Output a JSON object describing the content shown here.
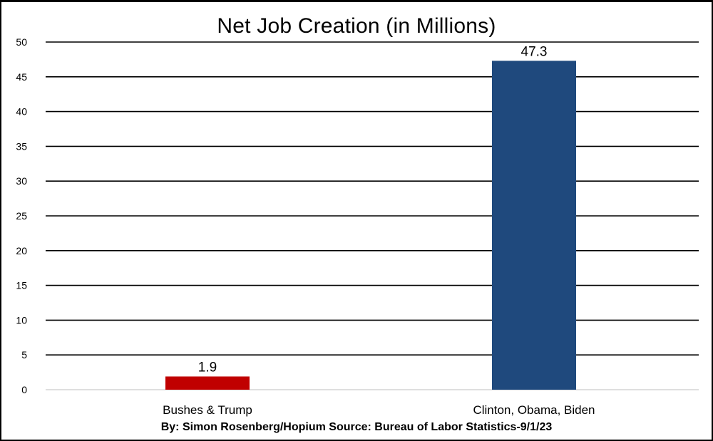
{
  "chart_data": {
    "type": "bar",
    "title": "Net Job Creation (in Millions)",
    "categories": [
      "Bushes & Trump",
      "Clinton, Obama, Biden"
    ],
    "values": [
      1.9,
      47.3
    ],
    "data_labels": [
      "1.9",
      "47.3"
    ],
    "bar_colors": [
      "#c00000",
      "#1f497d"
    ],
    "ylim": [
      0,
      50
    ],
    "yticks": [
      0,
      5,
      10,
      15,
      20,
      25,
      30,
      35,
      40,
      45,
      50
    ],
    "grid": true,
    "legend": "none",
    "xlabel": "",
    "ylabel": ""
  },
  "footer": "By: Simon Rosenberg/Hopium Source: Bureau of Labor Statistics-9/1/23"
}
